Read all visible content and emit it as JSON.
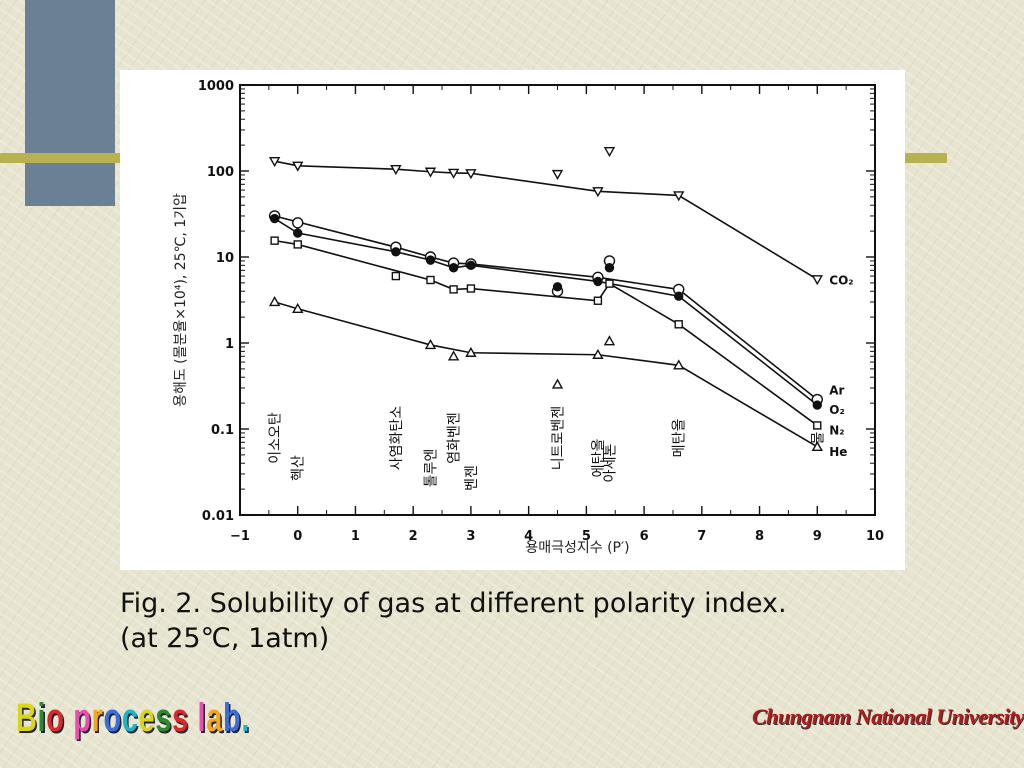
{
  "caption": {
    "line1": "Fig. 2. Solubility of gas at different polarity index.",
    "line2": "(at 25℃, 1atm)"
  },
  "footer": {
    "lab_name": "Bio process lab.",
    "lab_colors": [
      "#d9d51a",
      "#2f8a2f",
      "#d92a2a",
      "#e84db0",
      "#f2a81e",
      "#3a6fd9",
      "#19b5c9"
    ],
    "university": "Chungnam National University"
  },
  "theme": {
    "accent_blue": "#6b7f95",
    "accent_gold": "#b7b24f",
    "logo_red": "#b31b1b"
  },
  "chart_data": {
    "type": "line",
    "x_scale": "linear",
    "y_scale": "log",
    "xlim": [
      -1,
      10
    ],
    "ylim": [
      0.01,
      1000
    ],
    "x_ticks": [
      "−1",
      "0",
      "1",
      "2",
      "3",
      "4",
      "5",
      "6",
      "7",
      "8",
      "9",
      "10"
    ],
    "y_ticks": [
      "0.01",
      "0.1",
      "1",
      "10",
      "100",
      "1000"
    ],
    "xlabel": "용매극성지수 (P′)",
    "ylabel": "용해도 (몰분율×10⁴), 25℃, 1기압",
    "grid": false,
    "series": [
      {
        "name": "CO₂",
        "marker": "triangle-down",
        "line": [
          [
            -0.4,
            130
          ],
          [
            0,
            115
          ],
          [
            1.7,
            105
          ],
          [
            2.3,
            98
          ],
          [
            2.7,
            95
          ],
          [
            3,
            94
          ],
          [
            5.2,
            58
          ],
          [
            6.6,
            52
          ],
          [
            9,
            5.5
          ]
        ],
        "off_line": [
          [
            4.5,
            92
          ],
          [
            5.4,
            170
          ]
        ]
      },
      {
        "name": "Ar",
        "marker": "circle-open",
        "line": [
          [
            -0.4,
            30
          ],
          [
            1.7,
            13
          ],
          [
            2.3,
            10
          ],
          [
            2.7,
            8.5
          ],
          [
            3,
            8.3
          ],
          [
            5.2,
            5.8
          ],
          [
            6.6,
            4.2
          ],
          [
            9,
            0.22
          ]
        ],
        "off_line": [
          [
            0,
            25
          ],
          [
            4.5,
            4
          ],
          [
            5.4,
            9
          ]
        ]
      },
      {
        "name": "O₂",
        "marker": "circle-filled",
        "line": [
          [
            -0.4,
            28
          ],
          [
            0,
            19
          ],
          [
            1.7,
            11.5
          ],
          [
            2.3,
            9.2
          ],
          [
            2.7,
            7.5
          ],
          [
            3,
            8
          ],
          [
            5.2,
            5.2
          ],
          [
            6.6,
            3.5
          ],
          [
            9,
            0.19
          ]
        ],
        "off_line": [
          [
            4.5,
            4.5
          ],
          [
            5.4,
            7.5
          ]
        ]
      },
      {
        "name": "N₂",
        "marker": "square-open",
        "line": [
          [
            -0.4,
            15.5
          ],
          [
            0,
            14
          ],
          [
            2.3,
            5.4
          ],
          [
            2.7,
            4.2
          ],
          [
            3,
            4.3
          ],
          [
            5.2,
            3.1
          ],
          [
            5.4,
            4.9
          ],
          [
            6.6,
            1.65
          ],
          [
            9,
            0.11
          ]
        ],
        "off_line": [
          [
            1.7,
            6
          ]
        ]
      },
      {
        "name": "He",
        "marker": "triangle-up",
        "line": [
          [
            -0.4,
            3
          ],
          [
            0,
            2.5
          ],
          [
            2.3,
            0.95
          ],
          [
            3,
            0.77
          ],
          [
            5.2,
            0.73
          ],
          [
            6.6,
            0.55
          ],
          [
            9,
            0.062
          ]
        ],
        "off_line": [
          [
            2.7,
            0.7
          ],
          [
            4.5,
            0.33
          ],
          [
            5.4,
            1.05
          ]
        ]
      }
    ],
    "solvent_labels": [
      {
        "x": -0.4,
        "text": "이소오탄"
      },
      {
        "x": 0,
        "text": "헥산"
      },
      {
        "x": 1.7,
        "text": "사염화탄소"
      },
      {
        "x": 2.3,
        "text": "톨루엔"
      },
      {
        "x": 2.7,
        "text": "염화벤젠"
      },
      {
        "x": 3,
        "text": "벤젠"
      },
      {
        "x": 4.5,
        "text": "니트로벤젠"
      },
      {
        "x": 5.2,
        "text": "에탄올"
      },
      {
        "x": 5.4,
        "text": "아세톤"
      },
      {
        "x": 6.6,
        "text": "메탄올"
      },
      {
        "x": 9,
        "text": "물"
      }
    ]
  }
}
